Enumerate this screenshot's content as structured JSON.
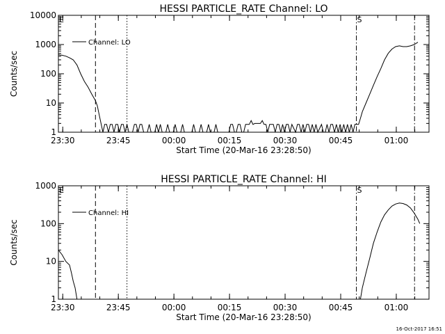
{
  "timestamp": "16-Oct-2017 16:51",
  "chart_data": [
    {
      "type": "line",
      "title": "HESSI PARTICLE_RATE Channel: LO",
      "xlabel": "Start Time (20-Mar-16 23:28:50)",
      "ylabel": "Counts/sec",
      "yscale": "log",
      "ylim": [
        1,
        10000
      ],
      "xlim_minutes": [
        0,
        100
      ],
      "x_tick_labels": [
        "23:30",
        "23:45",
        "00:00",
        "00:15",
        "00:30",
        "00:45",
        "01:00"
      ],
      "x_tick_minutes": [
        1.17,
        16.17,
        31.17,
        46.17,
        61.17,
        76.17,
        91.17
      ],
      "y_tick_labels": [
        "1",
        "10",
        "100",
        "1000",
        "10000"
      ],
      "y_tick_values": [
        1,
        10,
        100,
        1000,
        10000
      ],
      "legend": {
        "placement": "top-left",
        "entries": [
          "Channel: LO"
        ]
      },
      "markers": [
        {
          "label": "E",
          "minute": 0,
          "style": "solid"
        },
        {
          "label": "",
          "minute": 10,
          "style": "dashed"
        },
        {
          "label": "",
          "minute": 18.5,
          "style": "dotted"
        },
        {
          "label": "S",
          "minute": 80.4,
          "style": "dashdot"
        },
        {
          "label": "",
          "minute": 96.1,
          "style": "dashdot"
        }
      ],
      "series": [
        {
          "name": "Channel: LO",
          "points": [
            [
              0,
              450
            ],
            [
              1,
              430
            ],
            [
              2,
              400
            ],
            [
              3,
              350
            ],
            [
              4,
              300
            ],
            [
              5,
              200
            ],
            [
              6,
              100
            ],
            [
              7,
              55
            ],
            [
              8,
              35
            ],
            [
              9,
              20
            ],
            [
              10,
              12
            ],
            [
              10.5,
              8
            ],
            [
              11,
              4
            ],
            [
              11.5,
              2
            ],
            [
              12,
              1
            ],
            [
              12.5,
              1.85
            ],
            [
              13,
              1.85
            ],
            [
              13.5,
              1
            ],
            [
              14,
              1.85
            ],
            [
              14.5,
              1.85
            ],
            [
              15,
              1
            ],
            [
              15.5,
              1.85
            ],
            [
              16,
              1.85
            ],
            [
              16.5,
              1
            ],
            [
              17,
              1.85
            ],
            [
              17.5,
              1.85
            ],
            [
              18,
              1
            ],
            [
              18.5,
              1.85
            ],
            [
              19,
              1
            ],
            [
              20,
              1
            ],
            [
              20.5,
              1.85
            ],
            [
              21,
              1.85
            ],
            [
              21.5,
              1
            ],
            [
              22,
              1.85
            ],
            [
              22.5,
              1.85
            ],
            [
              23,
              1
            ],
            [
              24,
              1
            ],
            [
              24.5,
              1.85
            ],
            [
              25,
              1
            ],
            [
              26,
              1
            ],
            [
              26.5,
              1.85
            ],
            [
              27,
              1
            ],
            [
              27.5,
              1.85
            ],
            [
              28,
              1
            ],
            [
              29,
              1
            ],
            [
              29.5,
              1.85
            ],
            [
              30,
              1
            ],
            [
              31,
              1
            ],
            [
              31.5,
              1.85
            ],
            [
              32,
              1
            ],
            [
              33,
              1
            ],
            [
              33.5,
              1.85
            ],
            [
              34,
              1
            ],
            [
              35,
              1
            ],
            [
              36,
              1
            ],
            [
              36.5,
              1.85
            ],
            [
              37,
              1
            ],
            [
              38,
              1
            ],
            [
              38.5,
              1.85
            ],
            [
              39,
              1
            ],
            [
              40,
              1
            ],
            [
              40.5,
              1.85
            ],
            [
              41,
              1
            ],
            [
              42,
              1
            ],
            [
              42.5,
              1.85
            ],
            [
              43,
              1
            ],
            [
              44,
              1
            ],
            [
              45,
              1
            ],
            [
              46,
              1
            ],
            [
              46.5,
              1.85
            ],
            [
              47,
              1.85
            ],
            [
              47.5,
              1
            ],
            [
              48,
              1
            ],
            [
              48.5,
              1.85
            ],
            [
              49,
              1.85
            ],
            [
              49.5,
              1
            ],
            [
              50,
              1
            ],
            [
              50.5,
              1.85
            ],
            [
              51,
              1.85
            ],
            [
              51.5,
              1.85
            ],
            [
              52,
              2.5
            ],
            [
              52.5,
              1.85
            ],
            [
              53,
              2
            ],
            [
              53.5,
              2
            ],
            [
              54,
              2
            ],
            [
              54.5,
              2
            ],
            [
              55,
              2.5
            ],
            [
              55.5,
              1.85
            ],
            [
              56,
              1.85
            ],
            [
              56.5,
              1
            ],
            [
              57,
              1.85
            ],
            [
              58,
              1.85
            ],
            [
              58.5,
              1
            ],
            [
              59,
              1.85
            ],
            [
              59.5,
              1.85
            ],
            [
              60,
              1
            ],
            [
              60.5,
              1.85
            ],
            [
              61,
              1
            ],
            [
              61.5,
              1.85
            ],
            [
              62,
              1.85
            ],
            [
              62.5,
              1
            ],
            [
              63,
              1.85
            ],
            [
              64,
              1
            ],
            [
              64.5,
              1.85
            ],
            [
              65,
              1.85
            ],
            [
              65.5,
              1
            ],
            [
              66,
              1.85
            ],
            [
              66.5,
              1
            ],
            [
              67,
              1.85
            ],
            [
              67.5,
              1.85
            ],
            [
              68,
              1
            ],
            [
              68.5,
              1.85
            ],
            [
              69,
              1
            ],
            [
              69.5,
              1.85
            ],
            [
              70,
              1
            ],
            [
              71,
              1.85
            ],
            [
              71.5,
              1
            ],
            [
              72,
              1
            ],
            [
              72.5,
              1.85
            ],
            [
              73,
              1
            ],
            [
              73.5,
              1.85
            ],
            [
              74,
              1.85
            ],
            [
              74.5,
              1
            ],
            [
              75,
              1.85
            ],
            [
              75.5,
              1
            ],
            [
              76,
              1.85
            ],
            [
              76.5,
              1
            ],
            [
              77,
              1.85
            ],
            [
              77.5,
              1
            ],
            [
              78,
              1.85
            ],
            [
              78.5,
              1
            ],
            [
              79,
              1.85
            ],
            [
              79.5,
              1
            ],
            [
              80,
              1.85
            ],
            [
              80.5,
              1.85
            ],
            [
              81,
              1.85
            ],
            [
              81.5,
              3
            ],
            [
              82,
              5
            ],
            [
              83,
              10
            ],
            [
              84,
              20
            ],
            [
              85,
              40
            ],
            [
              86,
              80
            ],
            [
              87,
              150
            ],
            [
              88,
              300
            ],
            [
              89,
              500
            ],
            [
              90,
              700
            ],
            [
              91,
              850
            ],
            [
              92,
              900
            ],
            [
              93,
              850
            ],
            [
              94,
              850
            ],
            [
              95,
              900
            ],
            [
              96,
              1000
            ],
            [
              97,
              1200
            ]
          ]
        }
      ]
    },
    {
      "type": "line",
      "title": "HESSI PARTICLE_RATE Channel: HI",
      "xlabel": "Start Time (20-Mar-16 23:28:50)",
      "ylabel": "Counts/sec",
      "yscale": "log",
      "ylim": [
        1,
        1000
      ],
      "xlim_minutes": [
        0,
        100
      ],
      "x_tick_labels": [
        "23:30",
        "23:45",
        "00:00",
        "00:15",
        "00:30",
        "00:45",
        "01:00"
      ],
      "x_tick_minutes": [
        1.17,
        16.17,
        31.17,
        46.17,
        61.17,
        76.17,
        91.17
      ],
      "y_tick_labels": [
        "1",
        "10",
        "100",
        "1000"
      ],
      "y_tick_values": [
        1,
        10,
        100,
        1000
      ],
      "legend": {
        "placement": "top-left",
        "entries": [
          "Channel: HI"
        ]
      },
      "markers": [
        {
          "label": "E",
          "minute": 0,
          "style": "solid"
        },
        {
          "label": "",
          "minute": 10,
          "style": "dashed"
        },
        {
          "label": "",
          "minute": 18.5,
          "style": "dotted"
        },
        {
          "label": "S",
          "minute": 80.4,
          "style": "dashdot"
        },
        {
          "label": "",
          "minute": 96.1,
          "style": "dashdot"
        }
      ],
      "series": [
        {
          "name": "Channel: HI",
          "points": [
            [
              0,
              20
            ],
            [
              1,
              15
            ],
            [
              2,
              10
            ],
            [
              3,
              8
            ],
            [
              3.5,
              5
            ],
            [
              4,
              3
            ],
            [
              4.5,
              2
            ],
            [
              5,
              1
            ]
          ]
        },
        {
          "name": "Channel: HI",
          "points": [
            [
              81.5,
              1
            ],
            [
              82,
              2
            ],
            [
              83,
              5
            ],
            [
              84,
              12
            ],
            [
              85,
              30
            ],
            [
              86,
              60
            ],
            [
              87,
              110
            ],
            [
              88,
              170
            ],
            [
              89,
              230
            ],
            [
              90,
              290
            ],
            [
              91,
              330
            ],
            [
              92,
              350
            ],
            [
              93,
              340
            ],
            [
              94,
              310
            ],
            [
              95,
              260
            ],
            [
              96,
              190
            ],
            [
              97,
              130
            ],
            [
              97.5,
              100
            ]
          ]
        }
      ]
    }
  ]
}
